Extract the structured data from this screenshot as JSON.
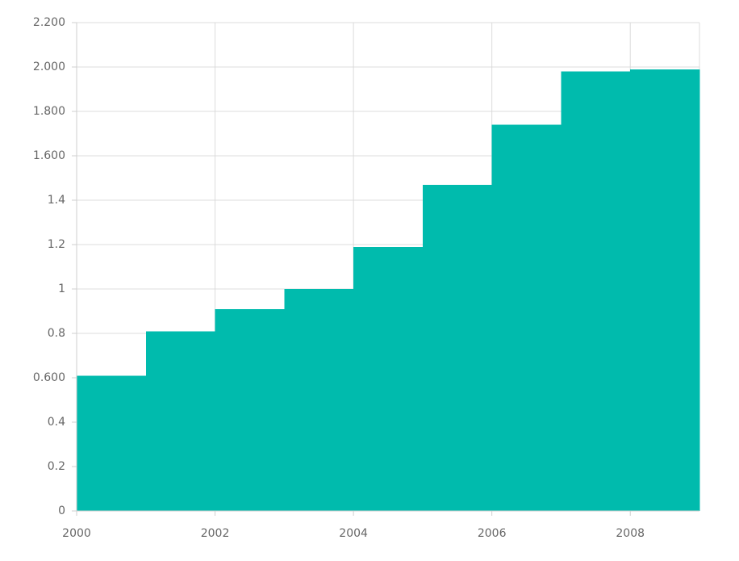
{
  "chart_data": {
    "type": "step",
    "x": [
      2000,
      2001,
      2002,
      2003,
      2004,
      2005,
      2006,
      2007,
      2008
    ],
    "values": [
      0.61,
      0.81,
      0.91,
      1.0,
      1.19,
      1.47,
      1.74,
      1.98,
      1.99
    ],
    "color": "#00bbad",
    "xlim": [
      2000,
      2009
    ],
    "xticks": [
      2000,
      2002,
      2004,
      2006,
      2008
    ],
    "ylim": [
      0,
      2.2
    ],
    "yticks": [
      0,
      0.2,
      0.4,
      {
        "value": 0.6,
        "label": "0.600"
      },
      0.8,
      1,
      1.2,
      1.4,
      {
        "value": 1.6,
        "label": "1.600"
      },
      {
        "value": 1.8,
        "label": "1.800"
      },
      {
        "value": 2.0,
        "label": "2.000"
      },
      {
        "value": 2.2,
        "label": "2.200"
      }
    ],
    "grid": true
  }
}
